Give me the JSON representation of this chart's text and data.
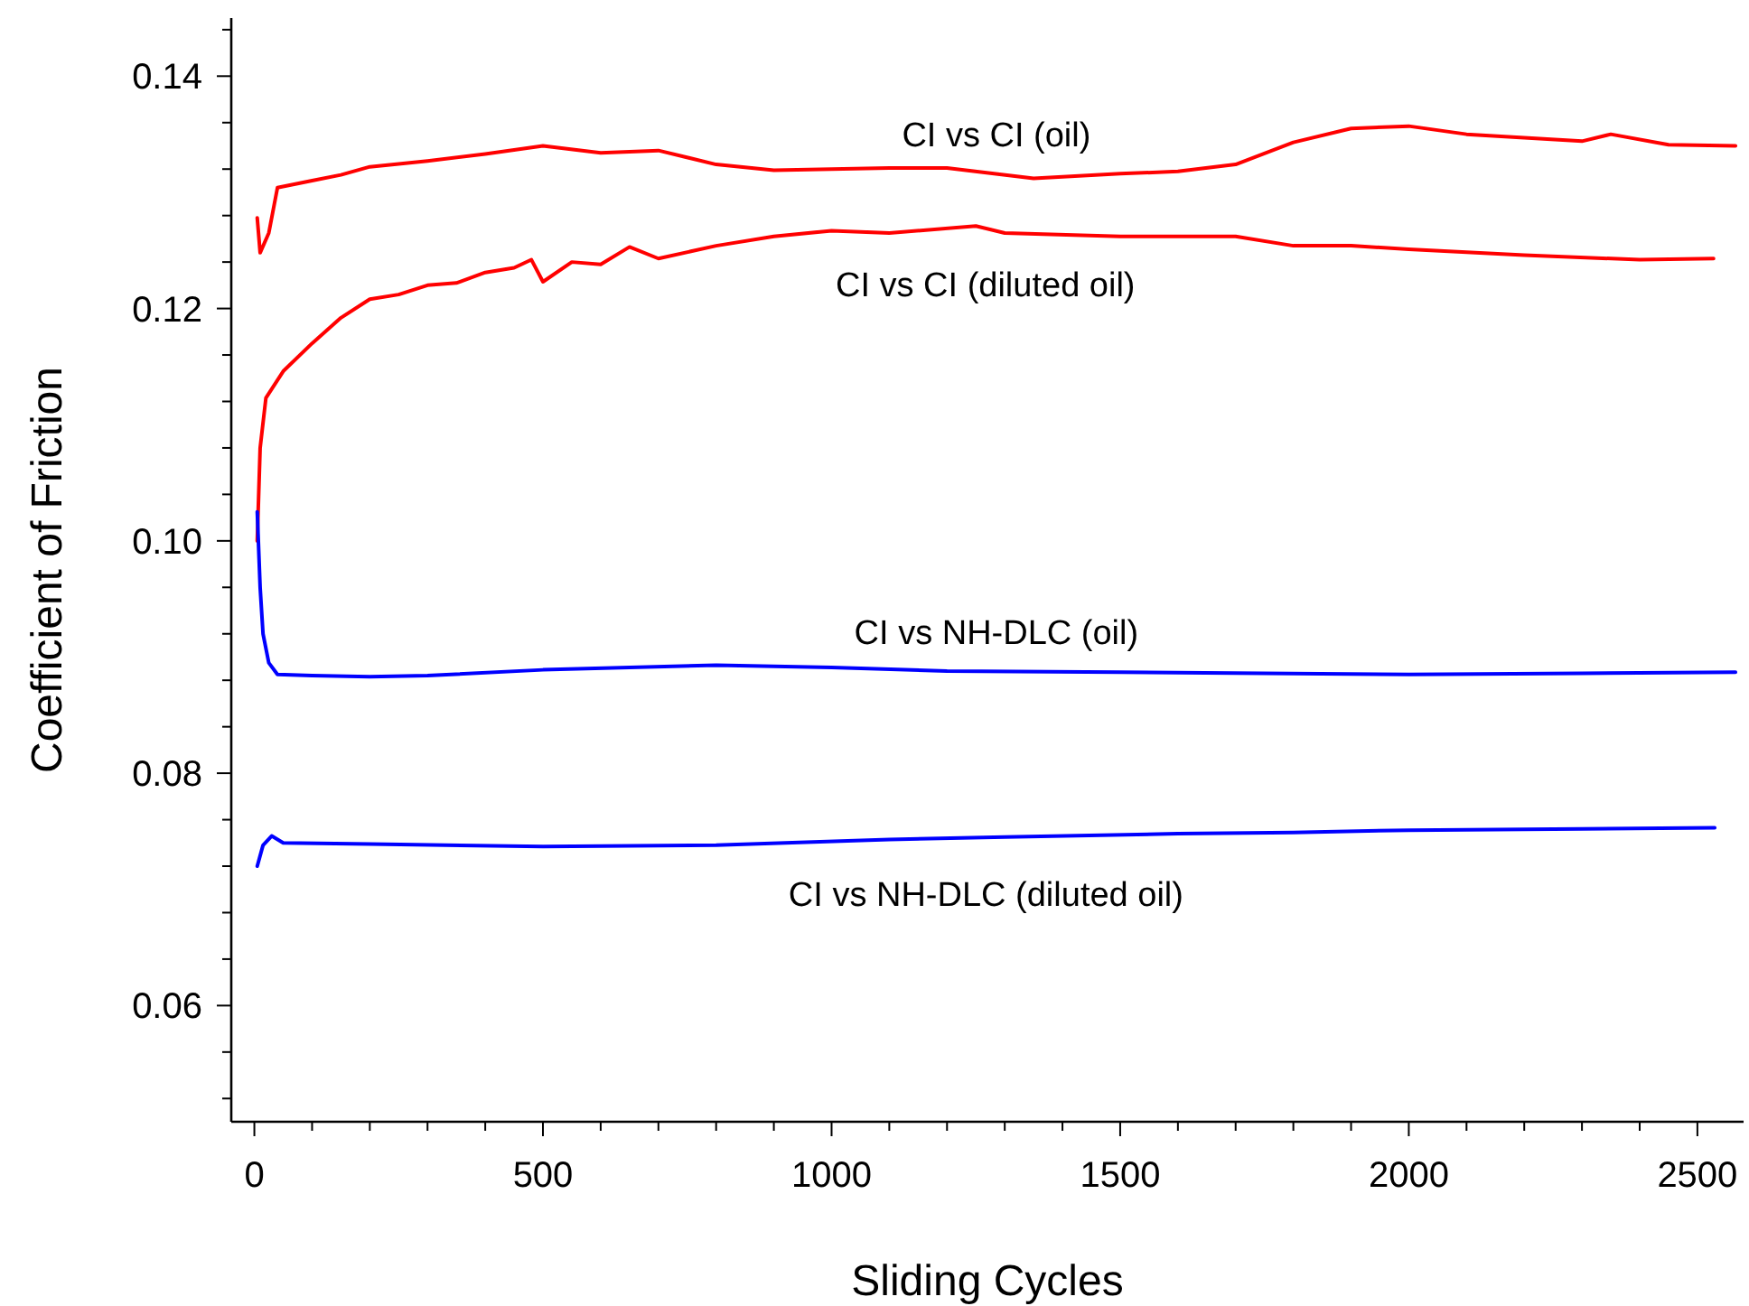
{
  "chart_data": {
    "type": "line",
    "xlabel": "Sliding Cycles",
    "ylabel": "Coefficient of Friction",
    "xlim": [
      -40,
      2580
    ],
    "ylim": [
      0.05,
      0.145
    ],
    "xticks": [
      0,
      {
        "value": 100,
        "label": null
      },
      {
        "value": 200,
        "label": null
      },
      {
        "value": 300,
        "label": null
      },
      {
        "value": 400,
        "label": null
      },
      500,
      {
        "value": 600,
        "label": null
      },
      {
        "value": 700,
        "label": null
      },
      {
        "value": 800,
        "label": null
      },
      {
        "value": 900,
        "label": null
      },
      1000,
      {
        "value": 1100,
        "label": null
      },
      {
        "value": 1200,
        "label": null
      },
      {
        "value": 1300,
        "label": null
      },
      {
        "value": 1400,
        "label": null
      },
      1500,
      {
        "value": 1600,
        "label": null
      },
      {
        "value": 1700,
        "label": null
      },
      {
        "value": 1800,
        "label": null
      },
      {
        "value": 1900,
        "label": null
      },
      2000,
      {
        "value": 2100,
        "label": null
      },
      {
        "value": 2200,
        "label": null
      },
      {
        "value": 2300,
        "label": null
      },
      {
        "value": 2400,
        "label": null
      },
      2500
    ],
    "yticks": [
      {
        "value": 0.052,
        "label": null
      },
      {
        "value": 0.056,
        "label": null
      },
      {
        "value": 0.06,
        "label": "0.06"
      },
      {
        "value": 0.064,
        "label": null
      },
      {
        "value": 0.068,
        "label": null
      },
      {
        "value": 0.072,
        "label": null
      },
      {
        "value": 0.076,
        "label": null
      },
      {
        "value": 0.08,
        "label": "0.08"
      },
      {
        "value": 0.084,
        "label": null
      },
      {
        "value": 0.088,
        "label": null
      },
      {
        "value": 0.092,
        "label": null
      },
      {
        "value": 0.096,
        "label": null
      },
      {
        "value": 0.1,
        "label": "0.10"
      },
      {
        "value": 0.104,
        "label": null
      },
      {
        "value": 0.108,
        "label": null
      },
      {
        "value": 0.112,
        "label": null
      },
      {
        "value": 0.116,
        "label": null
      },
      {
        "value": 0.12,
        "label": "0.12"
      },
      {
        "value": 0.124,
        "label": null
      },
      {
        "value": 0.128,
        "label": null
      },
      {
        "value": 0.132,
        "label": null
      },
      {
        "value": 0.136,
        "label": null
      },
      {
        "value": 0.14,
        "label": "0.14"
      },
      {
        "value": 0.144,
        "label": null
      }
    ],
    "grid": false,
    "marker": "none",
    "line_style": "solid",
    "series": [
      {
        "name": "CI vs CI (oil)",
        "color": "#ff0000",
        "x": [
          5,
          10,
          25,
          40,
          100,
          150,
          200,
          300,
          400,
          500,
          600,
          700,
          800,
          900,
          1000,
          1100,
          1200,
          1350,
          1500,
          1600,
          1700,
          1800,
          1900,
          2000,
          2100,
          2200,
          2300,
          2350,
          2450,
          2566
        ],
        "values": [
          0.1278,
          0.1248,
          0.1265,
          0.1304,
          0.131,
          0.1315,
          0.1322,
          0.1327,
          0.1333,
          0.134,
          0.1334,
          0.1336,
          0.1324,
          0.1319,
          0.132,
          0.1321,
          0.1321,
          0.1312,
          0.1316,
          0.1318,
          0.1324,
          0.1343,
          0.1355,
          0.1357,
          0.135,
          0.1347,
          0.1344,
          0.135,
          0.1341,
          0.134
        ]
      },
      {
        "name": "CI vs CI (diluted oil)",
        "color": "#ff0000",
        "x": [
          5,
          10,
          20,
          50,
          100,
          150,
          200,
          250,
          300,
          350,
          400,
          450,
          480,
          500,
          550,
          600,
          650,
          700,
          800,
          900,
          1000,
          1100,
          1250,
          1300,
          1500,
          1700,
          1800,
          1900,
          2000,
          2200,
          2400,
          2528
        ],
        "values": [
          0.1,
          0.108,
          0.1123,
          0.1146,
          0.117,
          0.1192,
          0.1208,
          0.1212,
          0.122,
          0.1222,
          0.1231,
          0.1235,
          0.1242,
          0.1223,
          0.124,
          0.1238,
          0.1253,
          0.1243,
          0.1254,
          0.1262,
          0.1267,
          0.1265,
          0.1271,
          0.1265,
          0.1262,
          0.1262,
          0.1254,
          0.1254,
          0.1251,
          0.1246,
          0.1242,
          0.1243
        ]
      },
      {
        "name": "CI vs NH-DLC (oil)",
        "color": "#0000ff",
        "x": [
          5,
          10,
          15,
          25,
          40,
          100,
          200,
          300,
          500,
          800,
          1000,
          1200,
          1500,
          2000,
          2300,
          2566
        ],
        "values": [
          0.1025,
          0.096,
          0.092,
          0.0895,
          0.0885,
          0.0884,
          0.0883,
          0.0884,
          0.0889,
          0.0893,
          0.0891,
          0.0888,
          0.0887,
          0.0885,
          0.0886,
          0.0887
        ]
      },
      {
        "name": "CI vs NH-DLC (diluted oil)",
        "color": "#0000ff",
        "x": [
          5,
          15,
          30,
          50,
          200,
          500,
          800,
          1100,
          1300,
          1600,
          1800,
          2000,
          2300,
          2530
        ],
        "values": [
          0.072,
          0.0738,
          0.0746,
          0.074,
          0.0739,
          0.0737,
          0.0738,
          0.0743,
          0.0745,
          0.0748,
          0.0749,
          0.0751,
          0.0752,
          0.0753
        ]
      }
    ]
  }
}
